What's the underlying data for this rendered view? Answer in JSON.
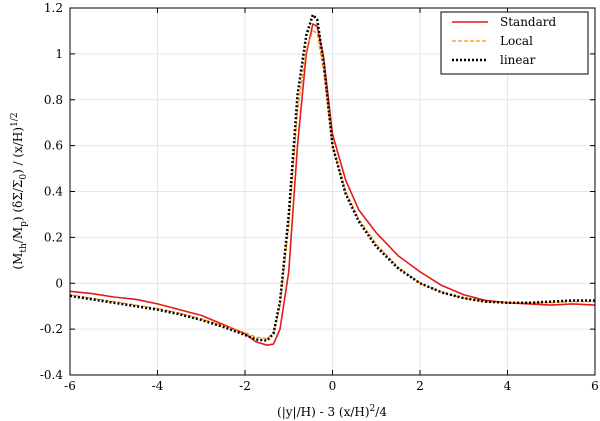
{
  "chart_data": {
    "type": "line",
    "title": "",
    "xlabel_parts": {
      "a": "(|y|/H) - 3 (x/H)",
      "sup": "2",
      "b": "/4"
    },
    "ylabel_parts": {
      "a": "(M",
      "sub1": "th",
      "b": "/M",
      "sub2": "p",
      "c": ") (δΣ/Σ",
      "sub3": "0",
      "d": ") / (x/H)",
      "sup": "1/2"
    },
    "xlim": [
      -6,
      6
    ],
    "ylim": [
      -0.4,
      1.2
    ],
    "x_ticks": [
      -6,
      -4,
      -2,
      0,
      2,
      4,
      6
    ],
    "y_ticks": [
      -0.4,
      -0.2,
      0,
      0.2,
      0.4,
      0.6,
      0.8,
      1,
      1.2
    ],
    "x_tick_labels": [
      "-6",
      "-4",
      "-2",
      "0",
      "2",
      "4",
      "6"
    ],
    "y_tick_labels": [
      "-0.4",
      "-0.2",
      "0",
      "0.2",
      "0.4",
      "0.6",
      "0.8",
      "1",
      "1.2"
    ],
    "grid": true,
    "legend_position": "top-right",
    "series": [
      {
        "name": "Standard",
        "color": "#e41a1c",
        "style": "solid",
        "points": [
          [
            -6,
            -0.035
          ],
          [
            -5.5,
            -0.045
          ],
          [
            -5,
            -0.06
          ],
          [
            -4.5,
            -0.07
          ],
          [
            -4,
            -0.09
          ],
          [
            -3.5,
            -0.115
          ],
          [
            -3,
            -0.14
          ],
          [
            -2.5,
            -0.18
          ],
          [
            -2,
            -0.22
          ],
          [
            -1.75,
            -0.255
          ],
          [
            -1.5,
            -0.27
          ],
          [
            -1.35,
            -0.265
          ],
          [
            -1.2,
            -0.2
          ],
          [
            -1.0,
            0.05
          ],
          [
            -0.8,
            0.6
          ],
          [
            -0.6,
            1.0
          ],
          [
            -0.45,
            1.13
          ],
          [
            -0.35,
            1.12
          ],
          [
            -0.2,
            0.98
          ],
          [
            0,
            0.65
          ],
          [
            0.3,
            0.45
          ],
          [
            0.6,
            0.32
          ],
          [
            1,
            0.22
          ],
          [
            1.5,
            0.12
          ],
          [
            2,
            0.05
          ],
          [
            2.5,
            -0.01
          ],
          [
            3,
            -0.05
          ],
          [
            3.5,
            -0.075
          ],
          [
            4,
            -0.085
          ],
          [
            4.5,
            -0.09
          ],
          [
            5,
            -0.095
          ],
          [
            5.5,
            -0.09
          ],
          [
            6,
            -0.095
          ]
        ]
      },
      {
        "name": "Local",
        "color": "#ff8c00",
        "style": "dashed",
        "points": [
          [
            -6,
            -0.05
          ],
          [
            -5.5,
            -0.065
          ],
          [
            -5,
            -0.08
          ],
          [
            -4.5,
            -0.095
          ],
          [
            -4,
            -0.11
          ],
          [
            -3.5,
            -0.13
          ],
          [
            -3,
            -0.155
          ],
          [
            -2.5,
            -0.185
          ],
          [
            -2,
            -0.215
          ],
          [
            -1.75,
            -0.235
          ],
          [
            -1.5,
            -0.24
          ],
          [
            -1.35,
            -0.22
          ],
          [
            -1.2,
            -0.1
          ],
          [
            -1.0,
            0.25
          ],
          [
            -0.8,
            0.75
          ],
          [
            -0.6,
            1.02
          ],
          [
            -0.45,
            1.1
          ],
          [
            -0.35,
            1.09
          ],
          [
            -0.2,
            0.92
          ],
          [
            0,
            0.6
          ],
          [
            0.3,
            0.4
          ],
          [
            0.6,
            0.28
          ],
          [
            1,
            0.17
          ],
          [
            1.5,
            0.07
          ],
          [
            2,
            0.0
          ],
          [
            2.5,
            -0.04
          ],
          [
            3,
            -0.065
          ],
          [
            3.5,
            -0.08
          ],
          [
            4,
            -0.085
          ],
          [
            4.5,
            -0.085
          ],
          [
            5,
            -0.085
          ],
          [
            5.5,
            -0.08
          ],
          [
            6,
            -0.08
          ]
        ]
      },
      {
        "name": "linear",
        "color": "#000000",
        "style": "dotted",
        "points": [
          [
            -6,
            -0.055
          ],
          [
            -5.5,
            -0.07
          ],
          [
            -5,
            -0.085
          ],
          [
            -4.5,
            -0.1
          ],
          [
            -4,
            -0.115
          ],
          [
            -3.5,
            -0.135
          ],
          [
            -3,
            -0.16
          ],
          [
            -2.5,
            -0.19
          ],
          [
            -2,
            -0.225
          ],
          [
            -1.75,
            -0.245
          ],
          [
            -1.5,
            -0.25
          ],
          [
            -1.35,
            -0.22
          ],
          [
            -1.2,
            -0.08
          ],
          [
            -1.0,
            0.3
          ],
          [
            -0.8,
            0.82
          ],
          [
            -0.6,
            1.08
          ],
          [
            -0.45,
            1.17
          ],
          [
            -0.35,
            1.15
          ],
          [
            -0.2,
            0.96
          ],
          [
            0,
            0.6
          ],
          [
            0.3,
            0.39
          ],
          [
            0.6,
            0.27
          ],
          [
            1,
            0.16
          ],
          [
            1.5,
            0.065
          ],
          [
            2,
            0.0
          ],
          [
            2.5,
            -0.04
          ],
          [
            3,
            -0.065
          ],
          [
            3.5,
            -0.08
          ],
          [
            4,
            -0.085
          ],
          [
            4.5,
            -0.085
          ],
          [
            5,
            -0.08
          ],
          [
            5.5,
            -0.075
          ],
          [
            6,
            -0.075
          ]
        ]
      }
    ]
  }
}
